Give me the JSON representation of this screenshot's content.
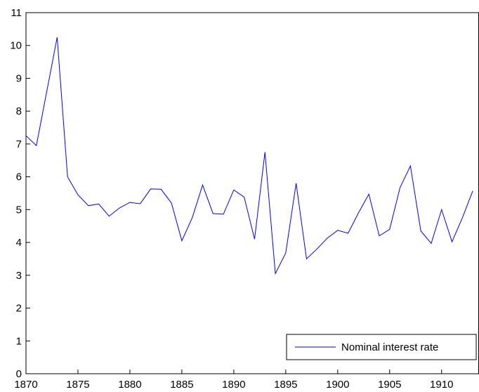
{
  "chart_data": {
    "type": "line",
    "x": [
      1870,
      1871,
      1872,
      1873,
      1874,
      1875,
      1876,
      1877,
      1878,
      1879,
      1880,
      1881,
      1882,
      1883,
      1884,
      1885,
      1886,
      1887,
      1888,
      1889,
      1890,
      1891,
      1892,
      1893,
      1894,
      1895,
      1896,
      1897,
      1898,
      1899,
      1900,
      1901,
      1902,
      1903,
      1904,
      1905,
      1906,
      1907,
      1908,
      1909,
      1910,
      1911,
      1912,
      1913
    ],
    "series": [
      {
        "name": "Nominal interest rate",
        "color": "#0000ff",
        "values": [
          7.25,
          6.95,
          8.6,
          10.25,
          6.0,
          5.45,
          5.12,
          5.17,
          4.8,
          5.05,
          5.22,
          5.18,
          5.63,
          5.62,
          5.2,
          4.05,
          4.75,
          5.75,
          4.88,
          4.86,
          5.6,
          5.38,
          4.1,
          6.75,
          3.05,
          3.68,
          5.8,
          3.5,
          3.8,
          4.13,
          4.37,
          4.28,
          4.9,
          5.47,
          4.2,
          4.4,
          5.67,
          6.33,
          4.35,
          3.97,
          5.0,
          4.02,
          4.75,
          5.57
        ]
      }
    ],
    "xlim": [
      1870,
      1913.6
    ],
    "xticks": [
      1870,
      1875,
      1880,
      1885,
      1890,
      1895,
      1900,
      1905,
      1910
    ],
    "ylim": [
      0,
      11
    ],
    "yticks": [
      0,
      1,
      2,
      3,
      4,
      5,
      6,
      7,
      8,
      9,
      10,
      11
    ],
    "grid": false,
    "legend": "lower right"
  }
}
